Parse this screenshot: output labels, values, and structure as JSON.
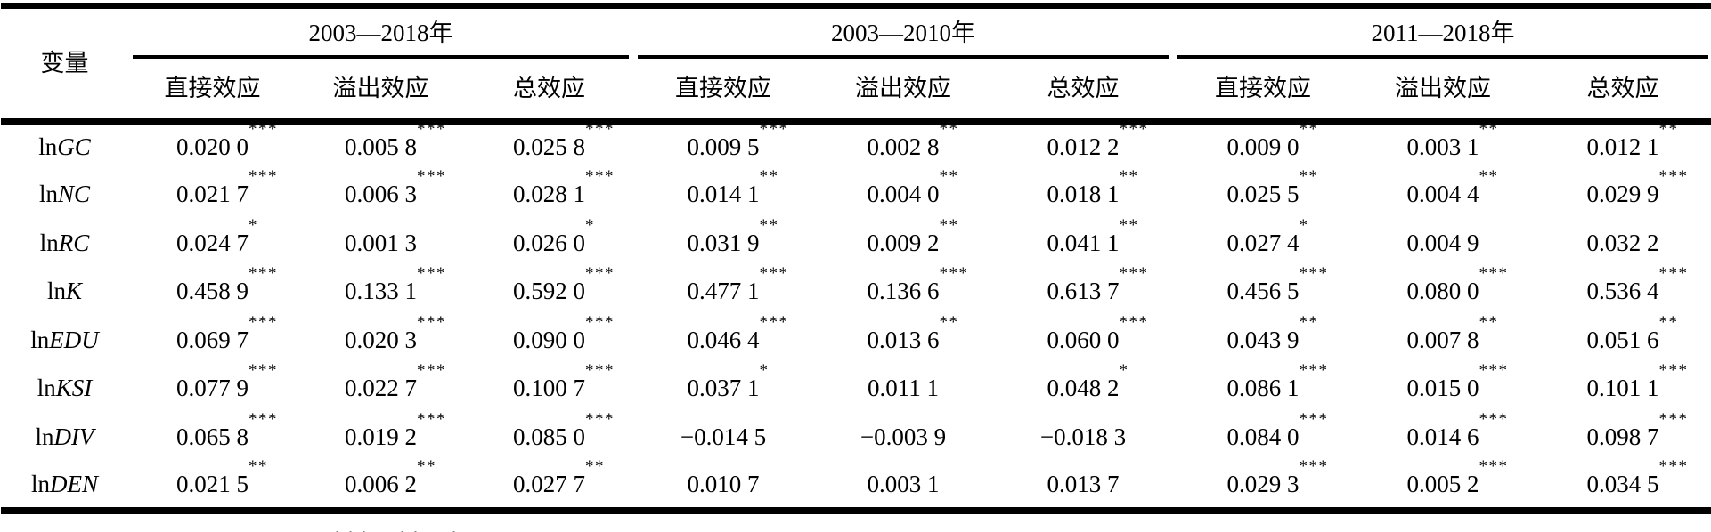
{
  "table": {
    "variable_header": "变量",
    "groups": [
      {
        "label": "2003—2018年"
      },
      {
        "label": "2003—2010年"
      },
      {
        "label": "2011—2018年"
      }
    ],
    "sub_headers": [
      "直接效应",
      "溢出效应",
      "总效应"
    ],
    "rows": [
      {
        "variable_prefix": "ln",
        "variable": "GC",
        "cells": [
          {
            "v": "0.020 0",
            "s": "***"
          },
          {
            "v": "0.005 8",
            "s": "***"
          },
          {
            "v": "0.025 8",
            "s": "***"
          },
          {
            "v": "0.009 5",
            "s": "***"
          },
          {
            "v": "0.002 8",
            "s": "**"
          },
          {
            "v": "0.012 2",
            "s": "***"
          },
          {
            "v": "0.009 0",
            "s": "**"
          },
          {
            "v": "0.003 1",
            "s": "**"
          },
          {
            "v": "0.012 1",
            "s": "**"
          }
        ]
      },
      {
        "variable_prefix": "ln",
        "variable": "NC",
        "cells": [
          {
            "v": "0.021 7",
            "s": "***"
          },
          {
            "v": "0.006 3",
            "s": "***"
          },
          {
            "v": "0.028 1",
            "s": "***"
          },
          {
            "v": "0.014 1",
            "s": "**"
          },
          {
            "v": "0.004 0",
            "s": "**"
          },
          {
            "v": "0.018 1",
            "s": "**"
          },
          {
            "v": "0.025 5",
            "s": "**"
          },
          {
            "v": "0.004 4",
            "s": "**"
          },
          {
            "v": "0.029 9",
            "s": "***"
          }
        ]
      },
      {
        "variable_prefix": "ln",
        "variable": "RC",
        "cells": [
          {
            "v": "0.024 7",
            "s": "*"
          },
          {
            "v": "0.001 3",
            "s": ""
          },
          {
            "v": "0.026 0",
            "s": "*"
          },
          {
            "v": "0.031 9",
            "s": "**"
          },
          {
            "v": "0.009 2",
            "s": "**"
          },
          {
            "v": "0.041 1",
            "s": "**"
          },
          {
            "v": "0.027 4",
            "s": "*"
          },
          {
            "v": "0.004 9",
            "s": ""
          },
          {
            "v": "0.032 2",
            "s": ""
          }
        ]
      },
      {
        "variable_prefix": "ln",
        "variable": "K",
        "cells": [
          {
            "v": "0.458 9",
            "s": "***"
          },
          {
            "v": "0.133 1",
            "s": "***"
          },
          {
            "v": "0.592 0",
            "s": "***"
          },
          {
            "v": "0.477 1",
            "s": "***"
          },
          {
            "v": "0.136 6",
            "s": "***"
          },
          {
            "v": "0.613 7",
            "s": "***"
          },
          {
            "v": "0.456 5",
            "s": "***"
          },
          {
            "v": "0.080 0",
            "s": "***"
          },
          {
            "v": "0.536 4",
            "s": "***"
          }
        ]
      },
      {
        "variable_prefix": "ln",
        "variable": "EDU",
        "cells": [
          {
            "v": "0.069 7",
            "s": "***"
          },
          {
            "v": "0.020 3",
            "s": "***"
          },
          {
            "v": "0.090 0",
            "s": "***"
          },
          {
            "v": "0.046 4",
            "s": "***"
          },
          {
            "v": "0.013 6",
            "s": "**"
          },
          {
            "v": "0.060 0",
            "s": "***"
          },
          {
            "v": "0.043 9",
            "s": "**"
          },
          {
            "v": "0.007 8",
            "s": "**"
          },
          {
            "v": "0.051 6",
            "s": "**"
          }
        ]
      },
      {
        "variable_prefix": "ln",
        "variable": "KSI",
        "cells": [
          {
            "v": "0.077 9",
            "s": "***"
          },
          {
            "v": "0.022 7",
            "s": "***"
          },
          {
            "v": "0.100 7",
            "s": "***"
          },
          {
            "v": "0.037 1",
            "s": "*"
          },
          {
            "v": "0.011 1",
            "s": ""
          },
          {
            "v": "0.048 2",
            "s": "*"
          },
          {
            "v": "0.086 1",
            "s": "***"
          },
          {
            "v": "0.015 0",
            "s": "***"
          },
          {
            "v": "0.101 1",
            "s": "***"
          }
        ]
      },
      {
        "variable_prefix": "ln",
        "variable": "DIV",
        "cells": [
          {
            "v": "0.065 8",
            "s": "***"
          },
          {
            "v": "0.019 2",
            "s": "***"
          },
          {
            "v": "0.085 0",
            "s": "***"
          },
          {
            "v": "−0.014 5",
            "s": ""
          },
          {
            "v": "−0.003 9",
            "s": ""
          },
          {
            "v": "−0.018 3",
            "s": ""
          },
          {
            "v": "0.084 0",
            "s": "***"
          },
          {
            "v": "0.014 6",
            "s": "***"
          },
          {
            "v": "0.098 7",
            "s": "***"
          }
        ]
      },
      {
        "variable_prefix": "ln",
        "variable": "DEN",
        "cells": [
          {
            "v": "0.021 5",
            "s": "**"
          },
          {
            "v": "0.006 2",
            "s": "**"
          },
          {
            "v": "0.027 7",
            "s": "**"
          },
          {
            "v": "0.010 7",
            "s": ""
          },
          {
            "v": "0.003 1",
            "s": ""
          },
          {
            "v": "0.013 7",
            "s": ""
          },
          {
            "v": "0.029 3",
            "s": "***"
          },
          {
            "v": "0.005 2",
            "s": "***"
          },
          {
            "v": "0.034 5",
            "s": "***"
          }
        ]
      }
    ],
    "note": "***、**、*"
  }
}
